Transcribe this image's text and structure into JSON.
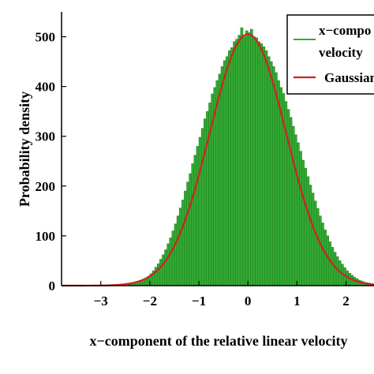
{
  "chart_data": {
    "type": "bar",
    "title": "",
    "xlabel": "x−component of the relative linear velocity",
    "ylabel": "Probability density",
    "xlim": [
      -3.8,
      2.7
    ],
    "ylim": [
      0,
      550
    ],
    "xticks": [
      "−3",
      "−2",
      "−1",
      "0",
      "1",
      "2"
    ],
    "yticks": [
      "0",
      "100",
      "200",
      "300",
      "400",
      "500"
    ],
    "legend": {
      "placement": "top-right",
      "entries": [
        "x−component of relative linear velocity",
        "Gaussian"
      ]
    },
    "histogram": {
      "name": "x−component of relative linear velocity",
      "bin_width": 0.05,
      "color": "#33aa33",
      "edge_color": "#1e7d1e",
      "x": [
        -2.45,
        -2.4,
        -2.35,
        -2.3,
        -2.25,
        -2.2,
        -2.15,
        -2.1,
        -2.05,
        -2.0,
        -1.95,
        -1.9,
        -1.85,
        -1.8,
        -1.75,
        -1.7,
        -1.65,
        -1.6,
        -1.55,
        -1.5,
        -1.45,
        -1.4,
        -1.35,
        -1.3,
        -1.25,
        -1.2,
        -1.15,
        -1.1,
        -1.05,
        -1.0,
        -0.95,
        -0.9,
        -0.85,
        -0.8,
        -0.75,
        -0.7,
        -0.65,
        -0.6,
        -0.55,
        -0.5,
        -0.45,
        -0.4,
        -0.35,
        -0.3,
        -0.25,
        -0.2,
        -0.15,
        -0.1,
        -0.05,
        0.0,
        0.05,
        0.1,
        0.15,
        0.2,
        0.25,
        0.3,
        0.35,
        0.4,
        0.45,
        0.5,
        0.55,
        0.6,
        0.65,
        0.7,
        0.75,
        0.8,
        0.85,
        0.9,
        0.95,
        1.0,
        1.05,
        1.1,
        1.15,
        1.2,
        1.25,
        1.3,
        1.35,
        1.4,
        1.45,
        1.5,
        1.55,
        1.6,
        1.65,
        1.7,
        1.75,
        1.8,
        1.85,
        1.9,
        1.95,
        2.0,
        2.05,
        2.1,
        2.15,
        2.2,
        2.25,
        2.3,
        2.35,
        2.4,
        2.45,
        2.5,
        2.55,
        2.6,
        2.65
      ],
      "values": [
        3,
        4,
        5,
        6,
        8,
        10,
        12,
        15,
        19,
        24,
        30,
        37,
        44,
        53,
        62,
        72,
        84,
        96,
        110,
        124,
        140,
        156,
        172,
        190,
        208,
        225,
        245,
        262,
        280,
        298,
        316,
        335,
        350,
        367,
        385,
        398,
        412,
        425,
        440,
        452,
        460,
        472,
        478,
        490,
        495,
        503,
        518,
        500,
        512,
        508,
        515,
        500,
        498,
        490,
        486,
        480,
        472,
        460,
        450,
        440,
        428,
        412,
        398,
        386,
        370,
        354,
        338,
        320,
        303,
        287,
        270,
        252,
        236,
        219,
        202,
        186,
        170,
        155,
        140,
        126,
        112,
        100,
        88,
        77,
        67,
        58,
        50,
        43,
        36,
        30,
        25,
        21,
        17,
        14,
        11,
        9,
        7,
        6,
        5,
        4,
        3,
        2,
        2
      ]
    },
    "gaussian": {
      "name": "Gaussian",
      "color": "#d42020",
      "mean": 0.0,
      "sd": 0.78,
      "peak": 505
    }
  }
}
